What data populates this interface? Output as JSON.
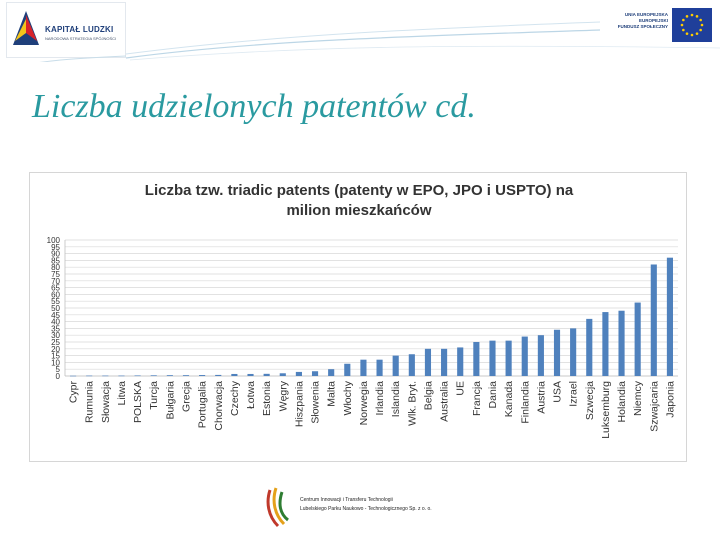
{
  "header": {
    "left_logo": {
      "title": "KAPITAŁ LUDZKI",
      "subtitle": "NARODOWA STRATEGIA SPÓJNOŚCI"
    },
    "right_logo": {
      "line1": "UNIA EUROPEJSKA",
      "line2": "EUROPEJSKI",
      "line3": "FUNDUSZ SPOŁECZNY"
    }
  },
  "slide": {
    "title": "Liczba udzielonych patentów cd."
  },
  "footer": {
    "line1": "Centrum Innowacji i Transferu Technologii",
    "line2": "Lubelskiego Parku Naukowo - Technologicznego Sp. z o. o."
  },
  "colors": {
    "bar": "#4f81bd",
    "title": "#2a9aa0",
    "grid": "#d9d9d9",
    "axis_text": "#333333"
  },
  "chart_data": {
    "type": "bar",
    "title_lines": [
      "Liczba tzw. triadic patents (patenty w EPO, JPO i USPTO) na",
      "milion mieszkańców"
    ],
    "categories": [
      "Cypr",
      "Rumunia",
      "Słowacja",
      "Litwa",
      "POLSKA",
      "Turcja",
      "Bułgaria",
      "Grecja",
      "Portugalia",
      "Chorwacja",
      "Czechy",
      "Łotwa",
      "Estonia",
      "Węgry",
      "Hiszpania",
      "Słowenia",
      "Malta",
      "Włochy",
      "Norwegia",
      "Irlandia",
      "Islandia",
      "Wlk. Bryt.",
      "Belgia",
      "Australia",
      "UE",
      "Francja",
      "Dania",
      "Kanada",
      "Finlandia",
      "Austria",
      "USA",
      "Izrael",
      "Szwecja",
      "Luksemburg",
      "Holandia",
      "Niemcy",
      "Szwajcaria",
      "Japonia"
    ],
    "values": [
      0.2,
      0.3,
      0.3,
      0.3,
      0.4,
      0.5,
      0.6,
      0.6,
      0.7,
      0.8,
      1.5,
      1.5,
      1.6,
      2,
      3,
      3.5,
      5,
      9,
      12,
      12,
      15,
      16,
      20,
      20,
      21,
      25,
      26,
      26,
      29,
      30,
      34,
      35,
      42,
      47,
      48,
      54,
      82,
      87
    ],
    "ylim": [
      0,
      100
    ],
    "yticks": [
      "0",
      "5",
      "10",
      "15",
      "20",
      "25",
      "30",
      "35",
      "40",
      "45",
      "50",
      "55",
      "60",
      "65",
      "70",
      "75",
      "80",
      "85",
      "90",
      "95",
      "100"
    ],
    "grid": true,
    "legend": "none"
  }
}
